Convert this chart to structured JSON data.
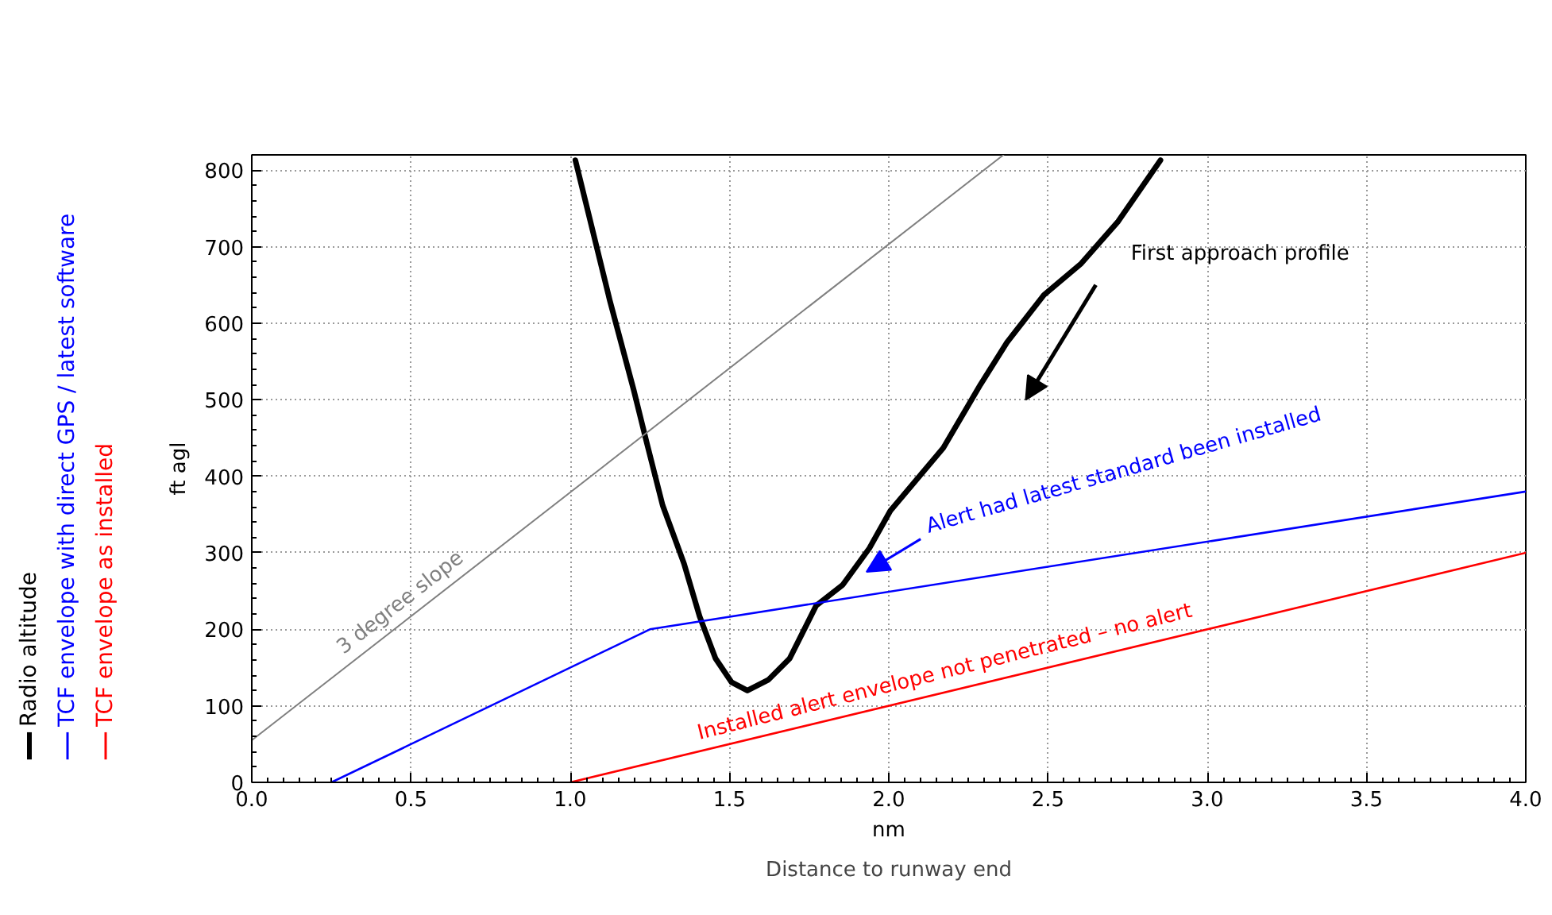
{
  "chart_data": {
    "type": "line",
    "xlabel": "nm\nDistance to runway end",
    "ylabel": "ft agl",
    "xlim": [
      0,
      4
    ],
    "ylim": [
      0,
      820
    ],
    "xticks": [
      {
        "value": 0,
        "label": "0.0"
      },
      {
        "value": 0.5,
        "label": "0.5"
      },
      {
        "value": 1,
        "label": "1.0"
      },
      {
        "value": 1.5,
        "label": "1.5"
      },
      {
        "value": 2,
        "label": "2.0"
      },
      {
        "value": 2.5,
        "label": "2.5"
      },
      {
        "value": 3,
        "label": "3.0"
      },
      {
        "value": 3.5,
        "label": "3.5"
      },
      {
        "value": 4,
        "label": "4.0"
      }
    ],
    "yticks": [
      0,
      100,
      200,
      300,
      400,
      500,
      600,
      700,
      800
    ],
    "grid": true,
    "legend": "left",
    "line_style": "solid",
    "marker": "none",
    "series": [
      {
        "name": "Radio altitude",
        "color": "#000000",
        "x": [
          1.016,
          1.124,
          1.199,
          1.24,
          1.29,
          1.357,
          1.406,
          1.456,
          1.506,
          1.556,
          1.622,
          1.689,
          1.772,
          1.855,
          1.939,
          2.005,
          2.171,
          2.288,
          2.371,
          2.487,
          2.604,
          2.72,
          2.853
        ],
        "values": [
          813,
          630,
          513,
          444,
          362,
          286,
          217,
          162,
          131,
          120,
          134,
          162,
          231,
          258,
          306,
          355,
          437,
          520,
          575,
          637,
          678,
          733,
          813
        ]
      },
      {
        "name": "TCF envelope with direct GPS / latest software",
        "color": "#0000ff",
        "x": [
          0.25,
          1.25,
          4
        ],
        "values": [
          0,
          200,
          380
        ]
      },
      {
        "name": "TCF envelope as installed",
        "color": "#ff0000",
        "x": [
          1,
          4
        ],
        "values": [
          0,
          300
        ]
      },
      {
        "name": "3 degree slope",
        "color": "#808080",
        "x": [
          0,
          2.36
        ],
        "values": [
          55,
          820
        ]
      }
    ],
    "annotations": [
      "First approach profile",
      "Alert had latest standard been installed",
      "Installed alert envelope not penetrated – no alert"
    ]
  }
}
